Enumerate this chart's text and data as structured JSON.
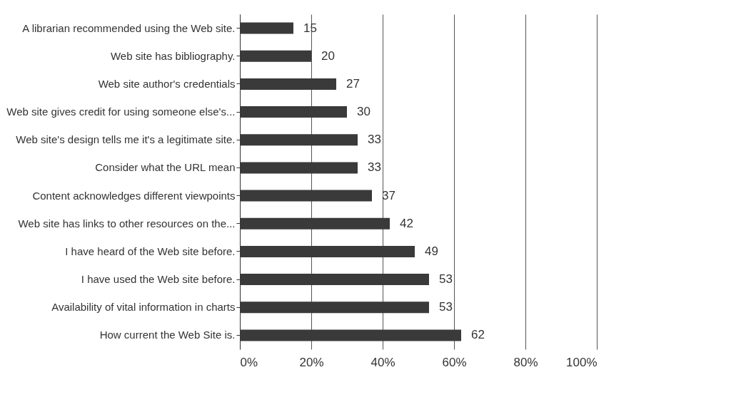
{
  "chart_data": {
    "type": "bar",
    "orientation": "horizontal",
    "categories": [
      "A librarian recommended using the Web site.",
      "Web site has bibliography.",
      "Web site author's credentials",
      "Web site gives credit for using someone else's...",
      "Web site's design tells me it's a legitimate site.",
      "Consider what the URL mean",
      "Content acknowledges different viewpoints",
      "Web site has links to other resources on the...",
      "I have heard of the Web site before.",
      "I have used the Web site before.",
      "Availability of vital information in charts",
      "How current the Web Site is."
    ],
    "values": [
      15,
      20,
      27,
      30,
      33,
      33,
      37,
      42,
      49,
      53,
      53,
      62
    ],
    "color": "#3a3a3a",
    "xlim": [
      0,
      100
    ],
    "xticks": [
      {
        "value": 0,
        "label": "0%"
      },
      {
        "value": 20,
        "label": "20%"
      },
      {
        "value": 40,
        "label": "40%"
      },
      {
        "value": 60,
        "label": "60%"
      },
      {
        "value": 80,
        "label": "80%"
      },
      {
        "value": 100,
        "label": "100%"
      }
    ],
    "grid": "x",
    "data_labels": true
  }
}
